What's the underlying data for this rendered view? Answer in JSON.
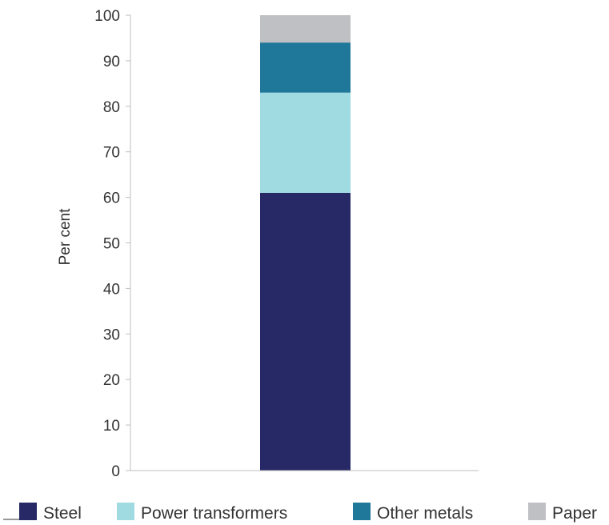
{
  "chart_data": {
    "type": "bar",
    "stacked": true,
    "categories": [
      ""
    ],
    "series": [
      {
        "name": "Steel",
        "values": [
          61
        ],
        "color": "#262966"
      },
      {
        "name": "Power transformers",
        "values": [
          22
        ],
        "color": "#a0dbe2"
      },
      {
        "name": "Other metals",
        "values": [
          11
        ],
        "color": "#1f7799"
      },
      {
        "name": "Paper",
        "values": [
          6
        ],
        "color": "#bfc0c3"
      }
    ],
    "ylabel": "Per cent",
    "xlabel": "",
    "ylim": [
      0,
      100
    ],
    "yticks": [
      0,
      10,
      20,
      30,
      40,
      50,
      60,
      70,
      80,
      90,
      100
    ],
    "grid": false,
    "legend_position": "bottom"
  }
}
